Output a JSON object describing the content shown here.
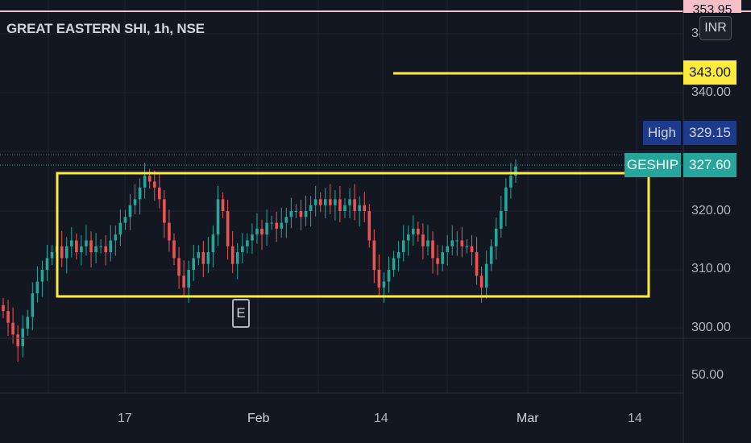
{
  "symbol_title": "GREAT EASTERN SHI, 1h, NSE",
  "currency": "INR",
  "price_axis": {
    "ticks": [
      "340.00",
      "320.00",
      "310.00",
      "300.00",
      "50.00"
    ],
    "partial_top_label": "353.95",
    "partial_top_label2": "34"
  },
  "tags": {
    "alert_price": "343.00",
    "high_label": "High",
    "high_value": "329.15",
    "symbol_label": "GESHIP",
    "last_price": "327.60"
  },
  "time_axis": {
    "labels": [
      "17",
      "Feb",
      "14",
      "Mar",
      "14"
    ]
  },
  "event_marker": "E",
  "colors": {
    "background": "#131722",
    "up_candle": "#26a69a",
    "down_candle": "#ef5350",
    "drawing_yellow": "#ffeb3b",
    "alert_line": "#f7c0c7",
    "last_price_line": "#26a69a"
  },
  "chart_data": {
    "type": "candlestick",
    "title": "GREAT EASTERN SHI, 1h, NSE",
    "ylim": [
      296,
      350
    ],
    "drawn_rectangle": {
      "from_price": 306,
      "to_price": 327
    },
    "horizontal_line_price": 343.0,
    "last_price": 327.6,
    "high": 329.15,
    "closes": [
      303,
      301,
      299,
      297,
      300,
      302,
      306,
      308,
      310,
      312,
      313,
      314,
      312,
      314,
      315,
      313,
      314,
      315,
      313,
      314,
      314,
      313,
      315,
      316,
      318,
      319,
      321,
      322,
      324,
      326,
      325,
      324,
      322,
      318,
      315,
      312,
      309,
      307,
      310,
      312,
      313,
      311,
      313,
      316,
      322,
      320,
      314,
      311,
      313,
      314,
      315,
      316,
      317,
      316,
      318,
      318,
      317,
      318,
      319,
      320,
      320,
      319,
      320,
      321,
      322,
      321,
      322,
      321,
      322,
      320,
      321,
      322,
      320,
      321,
      320,
      315,
      310,
      307,
      308,
      310,
      312,
      313,
      315,
      316,
      317,
      316,
      314,
      315,
      312,
      311,
      313,
      314,
      315,
      315,
      314,
      314,
      313,
      309,
      307,
      311,
      314,
      317,
      320,
      324,
      326,
      327.6
    ]
  }
}
